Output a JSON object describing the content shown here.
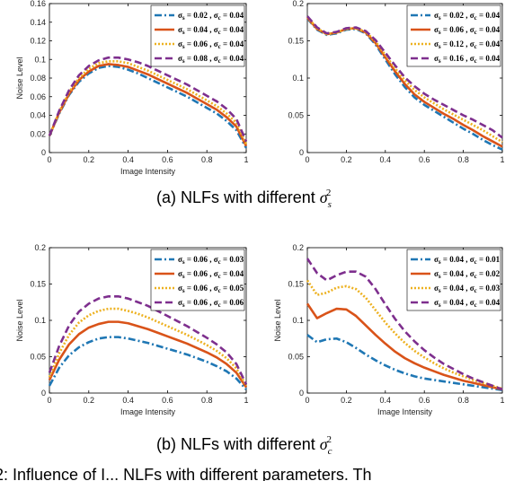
{
  "captions": [
    {
      "prefix": "(a) NLFs with different ",
      "symbol": "σ",
      "subscript": "s",
      "superscript": "2"
    },
    {
      "prefix": "(b) NLFs with different ",
      "symbol": "σ",
      "subscript": "c",
      "superscript": "2"
    }
  ],
  "footer_fragment": "2: Influence of I... NLFs with different parameters. Th",
  "series_colors": [
    "#1f77b4",
    "#d95319",
    "#edb120",
    "#7e2f8e"
  ],
  "series_dash": [
    "8,3,2,3",
    "none",
    "2,2",
    "8,4"
  ],
  "chart_data": [
    {
      "type": "line",
      "xlabel": "Image Intensity",
      "ylabel": "Noise Level",
      "xlim": [
        0,
        1
      ],
      "ylim": [
        0,
        0.16
      ],
      "xticks": [
        "0",
        "0.2",
        "0.4",
        "0.6",
        "0.8",
        "1"
      ],
      "yticks": [
        "0",
        "0.02",
        "0.04",
        "0.06",
        "0.08",
        "0.1",
        "0.12",
        "0.14",
        "0.16"
      ],
      "legend_position": "top-right",
      "x": [
        0,
        0.05,
        0.1,
        0.15,
        0.2,
        0.25,
        0.3,
        0.35,
        0.4,
        0.45,
        0.5,
        0.55,
        0.6,
        0.65,
        0.7,
        0.75,
        0.8,
        0.85,
        0.9,
        0.95,
        1
      ],
      "series": [
        {
          "name": "σs = 0.02 , σc = 0.04",
          "values": [
            0.018,
            0.042,
            0.062,
            0.076,
            0.085,
            0.091,
            0.093,
            0.092,
            0.089,
            0.085,
            0.08,
            0.075,
            0.07,
            0.065,
            0.06,
            0.054,
            0.048,
            0.042,
            0.034,
            0.024,
            0.005
          ]
        },
        {
          "name": "σs = 0.04 , σc = 0.04",
          "values": [
            0.018,
            0.043,
            0.063,
            0.078,
            0.087,
            0.093,
            0.095,
            0.094,
            0.092,
            0.088,
            0.084,
            0.079,
            0.074,
            0.069,
            0.064,
            0.058,
            0.052,
            0.046,
            0.038,
            0.028,
            0.007
          ]
        },
        {
          "name": "σs = 0.06 , σc = 0.04",
          "values": [
            0.018,
            0.044,
            0.065,
            0.08,
            0.09,
            0.096,
            0.098,
            0.098,
            0.096,
            0.092,
            0.088,
            0.083,
            0.078,
            0.073,
            0.068,
            0.062,
            0.056,
            0.05,
            0.042,
            0.032,
            0.009
          ]
        },
        {
          "name": "σs = 0.08 , σc = 0.04",
          "values": [
            0.018,
            0.045,
            0.067,
            0.083,
            0.093,
            0.099,
            0.102,
            0.102,
            0.1,
            0.097,
            0.093,
            0.088,
            0.083,
            0.078,
            0.073,
            0.067,
            0.061,
            0.055,
            0.047,
            0.036,
            0.012
          ]
        }
      ]
    },
    {
      "type": "line",
      "xlabel": "",
      "ylabel": "",
      "xlim": [
        0,
        1
      ],
      "ylim": [
        0,
        0.2
      ],
      "xticks": [
        "0",
        "0.2",
        "0.4",
        "0.6",
        "0.8",
        "1"
      ],
      "yticks": [
        "0",
        "0.05",
        "0.1",
        "0.15",
        "0.2"
      ],
      "legend_position": "top-right",
      "x": [
        0,
        0.05,
        0.1,
        0.15,
        0.2,
        0.25,
        0.3,
        0.35,
        0.4,
        0.45,
        0.5,
        0.55,
        0.6,
        0.65,
        0.7,
        0.75,
        0.8,
        0.85,
        0.9,
        0.95,
        1
      ],
      "series": [
        {
          "name": "σs = 0.02 , σc = 0.04",
          "values": [
            0.18,
            0.165,
            0.158,
            0.16,
            0.165,
            0.166,
            0.16,
            0.145,
            0.125,
            0.105,
            0.088,
            0.074,
            0.064,
            0.056,
            0.048,
            0.04,
            0.032,
            0.025,
            0.017,
            0.01,
            0.004
          ]
        },
        {
          "name": "σs = 0.06 , σc = 0.04",
          "values": [
            0.181,
            0.166,
            0.159,
            0.161,
            0.166,
            0.167,
            0.161,
            0.147,
            0.128,
            0.109,
            0.092,
            0.078,
            0.068,
            0.06,
            0.052,
            0.045,
            0.037,
            0.03,
            0.022,
            0.015,
            0.008
          ]
        },
        {
          "name": "σs = 0.12 , σc = 0.04",
          "values": [
            0.182,
            0.167,
            0.159,
            0.161,
            0.166,
            0.167,
            0.162,
            0.149,
            0.131,
            0.113,
            0.097,
            0.084,
            0.074,
            0.066,
            0.058,
            0.051,
            0.044,
            0.037,
            0.03,
            0.022,
            0.014
          ]
        },
        {
          "name": "σs = 0.16 , σc = 0.04",
          "values": [
            0.183,
            0.168,
            0.16,
            0.162,
            0.167,
            0.168,
            0.163,
            0.151,
            0.134,
            0.117,
            0.101,
            0.089,
            0.079,
            0.071,
            0.064,
            0.057,
            0.05,
            0.044,
            0.037,
            0.03,
            0.02
          ]
        }
      ]
    },
    {
      "type": "line",
      "xlabel": "Image Intensity",
      "ylabel": "Noise Level",
      "xlim": [
        0,
        1
      ],
      "ylim": [
        0,
        0.2
      ],
      "xticks": [
        "0",
        "0.2",
        "0.4",
        "0.6",
        "0.8",
        "1"
      ],
      "yticks": [
        "0",
        "0.05",
        "0.1",
        "0.15",
        "0.2"
      ],
      "legend_position": "top-right",
      "x": [
        0,
        0.05,
        0.1,
        0.15,
        0.2,
        0.25,
        0.3,
        0.35,
        0.4,
        0.45,
        0.5,
        0.55,
        0.6,
        0.65,
        0.7,
        0.75,
        0.8,
        0.85,
        0.9,
        0.95,
        1
      ],
      "series": [
        {
          "name": "σs = 0.06 , σc = 0.03",
          "values": [
            0.01,
            0.035,
            0.052,
            0.063,
            0.07,
            0.075,
            0.077,
            0.077,
            0.075,
            0.072,
            0.069,
            0.065,
            0.061,
            0.057,
            0.053,
            0.048,
            0.043,
            0.037,
            0.03,
            0.02,
            0.005
          ]
        },
        {
          "name": "σs = 0.06 , σc = 0.04",
          "values": [
            0.018,
            0.046,
            0.067,
            0.081,
            0.09,
            0.095,
            0.098,
            0.098,
            0.096,
            0.092,
            0.088,
            0.083,
            0.078,
            0.073,
            0.068,
            0.062,
            0.056,
            0.049,
            0.04,
            0.028,
            0.008
          ]
        },
        {
          "name": "σs = 0.06 , σc = 0.05",
          "values": [
            0.022,
            0.055,
            0.08,
            0.097,
            0.107,
            0.113,
            0.116,
            0.116,
            0.113,
            0.109,
            0.104,
            0.098,
            0.092,
            0.086,
            0.08,
            0.073,
            0.066,
            0.058,
            0.048,
            0.034,
            0.01
          ]
        },
        {
          "name": "σs = 0.06 , σc = 0.06",
          "values": [
            0.028,
            0.065,
            0.093,
            0.112,
            0.123,
            0.13,
            0.133,
            0.133,
            0.13,
            0.125,
            0.12,
            0.113,
            0.106,
            0.099,
            0.092,
            0.084,
            0.076,
            0.067,
            0.056,
            0.04,
            0.012
          ]
        }
      ]
    },
    {
      "type": "line",
      "xlabel": "Image Intensity",
      "ylabel": "Noise Level",
      "xlim": [
        0,
        1
      ],
      "ylim": [
        0,
        0.2
      ],
      "xticks": [
        "0",
        "0.2",
        "0.4",
        "0.6",
        "0.8",
        "1"
      ],
      "yticks": [
        "0",
        "0.05",
        "0.1",
        "0.15",
        "0.2"
      ],
      "legend_position": "top-right",
      "x": [
        0,
        0.05,
        0.1,
        0.15,
        0.2,
        0.25,
        0.3,
        0.35,
        0.4,
        0.45,
        0.5,
        0.55,
        0.6,
        0.65,
        0.7,
        0.75,
        0.8,
        0.85,
        0.9,
        0.95,
        1
      ],
      "series": [
        {
          "name": "σs = 0.04 , σc = 0.01",
          "values": [
            0.08,
            0.07,
            0.074,
            0.075,
            0.07,
            0.062,
            0.053,
            0.045,
            0.038,
            0.032,
            0.027,
            0.023,
            0.02,
            0.018,
            0.016,
            0.014,
            0.012,
            0.01,
            0.008,
            0.006,
            0.004
          ]
        },
        {
          "name": "σs = 0.04 , σc = 0.02",
          "values": [
            0.123,
            0.103,
            0.11,
            0.116,
            0.115,
            0.106,
            0.093,
            0.08,
            0.068,
            0.057,
            0.048,
            0.041,
            0.035,
            0.03,
            0.025,
            0.021,
            0.017,
            0.014,
            0.011,
            0.008,
            0.005
          ]
        },
        {
          "name": "σs = 0.04 , σc = 0.03",
          "values": [
            0.155,
            0.135,
            0.138,
            0.145,
            0.147,
            0.143,
            0.131,
            0.114,
            0.097,
            0.082,
            0.069,
            0.058,
            0.049,
            0.041,
            0.034,
            0.028,
            0.023,
            0.018,
            0.014,
            0.01,
            0.006
          ]
        },
        {
          "name": "σs = 0.04 , σc = 0.04",
          "values": [
            0.185,
            0.165,
            0.155,
            0.162,
            0.167,
            0.167,
            0.16,
            0.143,
            0.122,
            0.102,
            0.085,
            0.071,
            0.059,
            0.049,
            0.04,
            0.033,
            0.026,
            0.02,
            0.015,
            0.01,
            0.005
          ]
        }
      ]
    }
  ]
}
